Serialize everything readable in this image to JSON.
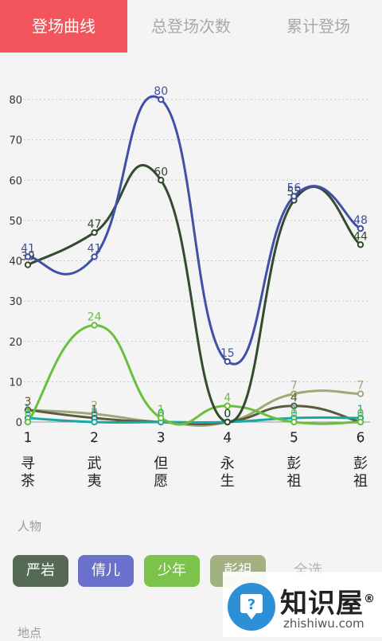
{
  "tabs": [
    {
      "label": "登场曲线",
      "active": true
    },
    {
      "label": "总登场次数",
      "active": false
    },
    {
      "label": "累计登场",
      "active": false
    }
  ],
  "chart_data": {
    "type": "line",
    "x": [
      1,
      2,
      3,
      4,
      5,
      6
    ],
    "ylim": [
      0,
      85
    ],
    "yticks": [
      0,
      10,
      20,
      30,
      40,
      50,
      60,
      70,
      80
    ],
    "grid": true,
    "categories": [
      "寻茶",
      "武夷",
      "但愿",
      "永生",
      "彭祖",
      "彭祖"
    ],
    "series": [
      {
        "name": "严岩",
        "color": "#354a2f",
        "values": [
          39,
          47,
          60,
          0,
          55,
          44
        ]
      },
      {
        "name": "倩儿",
        "color": "#4050a8",
        "values": [
          41,
          41,
          80,
          15,
          56,
          48
        ]
      },
      {
        "name": "少年",
        "color": "#6abf3c",
        "values": [
          0,
          24,
          1,
          4,
          0,
          0
        ]
      },
      {
        "name": "彭祖",
        "color": "#9aaa78",
        "values": [
          3,
          2,
          0,
          0,
          7,
          7
        ]
      },
      {
        "name": "",
        "color": "#5a5a3c",
        "values": [
          3,
          1,
          0,
          0,
          4,
          0
        ]
      },
      {
        "name": "",
        "color": "#18a8a8",
        "values": [
          1,
          0,
          0,
          0,
          1,
          1
        ]
      }
    ]
  },
  "filters": {
    "people_label": "人物",
    "people": [
      {
        "label": "严岩",
        "color": "#546a52"
      },
      {
        "label": "倩儿",
        "color": "#6b70cc"
      },
      {
        "label": "少年",
        "color": "#7bc34b"
      },
      {
        "label": "彭祖",
        "color": "#a2b082"
      }
    ],
    "select_all": "全选",
    "place_label": "地点"
  },
  "watermark": {
    "text": "知识屋",
    "url": "zhishiwu.com",
    "mark": "®"
  }
}
